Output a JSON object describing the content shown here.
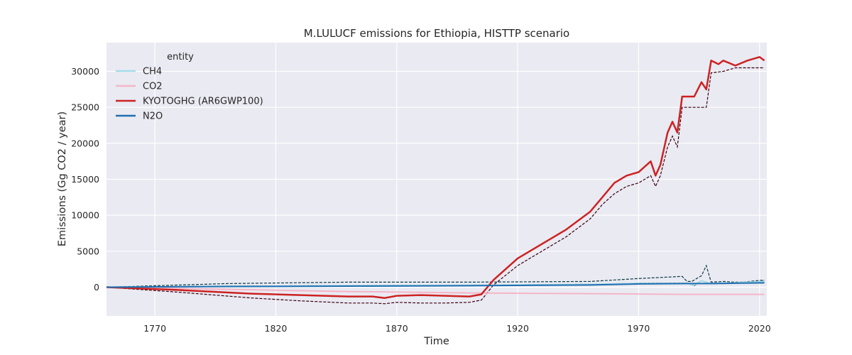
{
  "chart_data": {
    "type": "line",
    "title": "M.LULUCF emissions for Ethiopia, HISTTP scenario",
    "xlabel": "Time",
    "ylabel": "Emissions (Gg CO2 / year)",
    "xlim": [
      1750,
      2023
    ],
    "ylim": [
      -4000,
      34000
    ],
    "xticks": [
      1770,
      1820,
      1870,
      1920,
      1970,
      2020
    ],
    "yticks": [
      0,
      5000,
      10000,
      15000,
      20000,
      25000,
      30000
    ],
    "grid": true,
    "background": "#eaeaf2",
    "legend": {
      "title": "entity",
      "position": "top-left"
    },
    "series": [
      {
        "name": "CH4",
        "color": "#a6dcea",
        "x": [
          1750,
          1800,
          1850,
          1900,
          1950,
          1970,
          1990,
          1993,
          1996,
          1998,
          2000,
          2010,
          2022
        ],
        "values": [
          0,
          120,
          200,
          260,
          380,
          520,
          520,
          300,
          900,
          650,
          500,
          600,
          800
        ]
      },
      {
        "name": "CO2",
        "color": "#f4b6c8",
        "x": [
          1750,
          1800,
          1850,
          1900,
          1950,
          1970,
          1990,
          2000,
          2010,
          2022
        ],
        "values": [
          0,
          -300,
          -600,
          -800,
          -900,
          -950,
          -1000,
          -1000,
          -1000,
          -1000
        ]
      },
      {
        "name": "KYOTOGHG (AR6GWP100)",
        "color": "#cc2222",
        "x": [
          1750,
          1780,
          1810,
          1830,
          1850,
          1860,
          1865,
          1870,
          1880,
          1890,
          1900,
          1905,
          1910,
          1920,
          1930,
          1940,
          1950,
          1955,
          1960,
          1965,
          1970,
          1975,
          1977,
          1979,
          1982,
          1984,
          1986,
          1988,
          1993,
          1996,
          1998,
          2000,
          2003,
          2005,
          2010,
          2015,
          2020,
          2022
        ],
        "values": [
          0,
          -400,
          -900,
          -1100,
          -1300,
          -1300,
          -1500,
          -1200,
          -1100,
          -1200,
          -1300,
          -1000,
          1000,
          4000,
          6000,
          8000,
          10500,
          12500,
          14500,
          15500,
          16000,
          17500,
          15500,
          17000,
          21500,
          23000,
          21500,
          26500,
          26500,
          28500,
          27500,
          31500,
          31000,
          31500,
          30800,
          31500,
          32000,
          31500
        ]
      },
      {
        "name": "N2O",
        "color": "#1f6fb0",
        "x": [
          1750,
          1800,
          1850,
          1900,
          1950,
          1970,
          1990,
          2000,
          2010,
          2022
        ],
        "values": [
          0,
          100,
          150,
          200,
          300,
          450,
          500,
          500,
          550,
          600
        ]
      }
    ],
    "dashed_lines": [
      {
        "color": "#3a0010",
        "x": [
          1750,
          1780,
          1810,
          1830,
          1850,
          1860,
          1865,
          1870,
          1880,
          1890,
          1900,
          1905,
          1910,
          1920,
          1930,
          1940,
          1950,
          1955,
          1960,
          1965,
          1970,
          1975,
          1977,
          1979,
          1982,
          1984,
          1986,
          1988,
          1993,
          1996,
          1998,
          2000,
          2005,
          2010,
          2015,
          2020,
          2022
        ],
        "values": [
          0,
          -700,
          -1500,
          -1900,
          -2200,
          -2200,
          -2300,
          -2100,
          -2200,
          -2200,
          -2100,
          -1800,
          300,
          3000,
          5000,
          7000,
          9500,
          11500,
          13000,
          14000,
          14500,
          15500,
          14000,
          15500,
          19500,
          21000,
          19500,
          25000,
          25000,
          25000,
          25000,
          29800,
          30000,
          30500,
          30500,
          30500,
          30500
        ]
      },
      {
        "color": "#0b3b46",
        "x": [
          1750,
          1800,
          1850,
          1900,
          1950,
          1970,
          1988,
          1990,
          1992,
          1994,
          1996,
          1998,
          2000,
          2005,
          2010,
          2015,
          2020,
          2022
        ],
        "values": [
          0,
          500,
          700,
          700,
          800,
          1200,
          1500,
          800,
          800,
          1200,
          1600,
          3000,
          700,
          800,
          700,
          700,
          800,
          900
        ]
      },
      {
        "color": "#0b3b46",
        "x": [
          1750,
          1800,
          1850,
          1900,
          1950,
          1970,
          1990,
          1993,
          1996,
          1998,
          2000,
          2010,
          2022
        ],
        "values": [
          0,
          150,
          230,
          280,
          400,
          550,
          550,
          200,
          900,
          700,
          450,
          600,
          1000
        ]
      },
      {
        "color": "#0b1e3b",
        "x": [
          1750,
          1800,
          1850,
          1900,
          1950,
          1970,
          1990,
          2000,
          2010,
          2022
        ],
        "values": [
          0,
          120,
          180,
          230,
          330,
          480,
          520,
          520,
          570,
          650
        ]
      }
    ]
  }
}
